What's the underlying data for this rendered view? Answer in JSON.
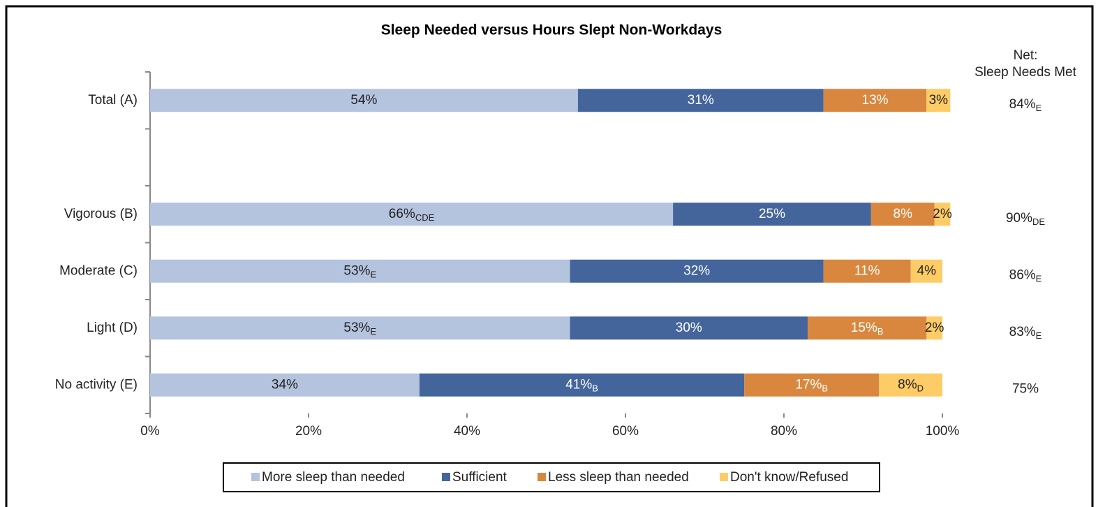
{
  "chart_data": {
    "type": "stacked-bar-horizontal",
    "title": "Sleep Needed  versus Hours Slept Non-Workdays",
    "categories": [
      "Total (A)",
      null,
      "Vigorous (B)",
      "Moderate (C)",
      "Light (D)",
      "No activity (E)"
    ],
    "series": [
      {
        "name": "More sleep than needed",
        "color": "#b4c3de",
        "label_color": "#222",
        "values": [
          54,
          null,
          66,
          53,
          53,
          34
        ],
        "value_labels": [
          "54%",
          null,
          "66%",
          "53%",
          "53%",
          "34%"
        ],
        "value_label_subscripts": [
          null,
          null,
          "CDE",
          "E",
          "E",
          null
        ]
      },
      {
        "name": "Sufficient",
        "color": "#44659b",
        "label_color": "#ffffff",
        "values": [
          31,
          null,
          25,
          32,
          30,
          41
        ],
        "value_labels": [
          "31%",
          null,
          "25%",
          "32%",
          "30%",
          "41%"
        ],
        "value_label_subscripts": [
          null,
          null,
          null,
          null,
          null,
          "B"
        ]
      },
      {
        "name": "Less sleep than needed",
        "color": "#d9873e",
        "label_color": "#ffffff",
        "values": [
          13,
          null,
          8,
          11,
          15,
          17
        ],
        "value_labels": [
          "13%",
          null,
          "8%",
          "11%",
          "15%",
          "17%"
        ],
        "value_label_subscripts": [
          null,
          null,
          null,
          null,
          "B",
          "B"
        ]
      },
      {
        "name": "Don't know/Refused",
        "color": "#fecc66",
        "label_color": "#222",
        "values": [
          3,
          null,
          2,
          4,
          2,
          8
        ],
        "value_labels": [
          "3%",
          null,
          "2%",
          "4%",
          "2%",
          "8%"
        ],
        "value_label_subscripts": [
          null,
          null,
          null,
          null,
          null,
          "D"
        ]
      }
    ],
    "net_header": [
      "Net:",
      "Sleep Needs Met"
    ],
    "net_values": [
      84,
      null,
      90,
      86,
      83,
      75
    ],
    "net_labels": [
      "84%",
      null,
      "90%",
      "86%",
      "83%",
      "75%"
    ],
    "net_subscripts": [
      "E",
      null,
      "DE",
      "E",
      "E",
      null
    ],
    "xlim": [
      0,
      100
    ],
    "xticks": [
      {
        "value": 0,
        "label": "0%"
      },
      {
        "value": 20,
        "label": "20%"
      },
      {
        "value": 40,
        "label": "40%"
      },
      {
        "value": 60,
        "label": "60%"
      },
      {
        "value": 80,
        "label": "80%"
      },
      {
        "value": 100,
        "label": "100%"
      }
    ],
    "legend": "bottom"
  }
}
